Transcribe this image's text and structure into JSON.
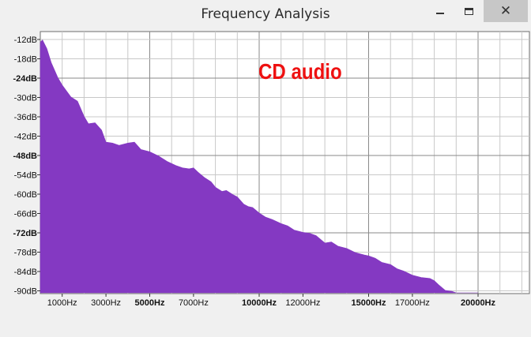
{
  "window": {
    "title": "Frequency Analysis",
    "close_glyph": "✕"
  },
  "chart_data": {
    "type": "area",
    "annotation": "CD audio",
    "series_color": "#8439c2",
    "yticks": [
      {
        "value": -12,
        "label": "-12dB",
        "bold": false
      },
      {
        "value": -18,
        "label": "-18dB",
        "bold": false
      },
      {
        "value": -24,
        "label": "-24dB",
        "bold": true
      },
      {
        "value": -30,
        "label": "-30dB",
        "bold": false
      },
      {
        "value": -36,
        "label": "-36dB",
        "bold": false
      },
      {
        "value": -42,
        "label": "-42dB",
        "bold": false
      },
      {
        "value": -48,
        "label": "-48dB",
        "bold": true
      },
      {
        "value": -54,
        "label": "-54dB",
        "bold": false
      },
      {
        "value": -60,
        "label": "-60dB",
        "bold": false
      },
      {
        "value": -66,
        "label": "-66dB",
        "bold": false
      },
      {
        "value": -72,
        "label": "-72dB",
        "bold": true
      },
      {
        "value": -78,
        "label": "-78dB",
        "bold": false
      },
      {
        "value": -84,
        "label": "-84dB",
        "bold": false
      },
      {
        "value": -90,
        "label": "-90dB",
        "bold": false
      }
    ],
    "xticks": [
      {
        "value": 1000,
        "label": "1000Hz",
        "bold": false
      },
      {
        "value": 3000,
        "label": "3000Hz",
        "bold": false
      },
      {
        "value": 5000,
        "label": "5000Hz",
        "bold": true
      },
      {
        "value": 7000,
        "label": "7000Hz",
        "bold": false
      },
      {
        "value": 10000,
        "label": "10000Hz",
        "bold": true
      },
      {
        "value": 12000,
        "label": "12000Hz",
        "bold": false
      },
      {
        "value": 15000,
        "label": "15000Hz",
        "bold": true
      },
      {
        "value": 17000,
        "label": "17000Hz",
        "bold": false
      },
      {
        "value": 20000,
        "label": "20000Hz",
        "bold": true
      }
    ],
    "xlim": [
      0,
      22050
    ],
    "ylim": [
      -92,
      -10
    ],
    "grid": true,
    "x": [
      0,
      100,
      300,
      500,
      800,
      1000,
      1400,
      1700,
      2000,
      2200,
      2500,
      2800,
      3000,
      3300,
      3600,
      4000,
      4300,
      4600,
      5000,
      5400,
      5800,
      6200,
      6500,
      6800,
      7000,
      7200,
      7500,
      7800,
      8000,
      8300,
      8500,
      8800,
      9000,
      9300,
      9500,
      9700,
      10000,
      10300,
      10600,
      11000,
      11300,
      11600,
      12000,
      12300,
      12600,
      13000,
      13300,
      13600,
      14000,
      14400,
      14800,
      15000,
      15300,
      15600,
      16000,
      16300,
      16600,
      17000,
      17400,
      17800,
      18000,
      18200,
      18500,
      18800,
      19000,
      19500,
      20000
    ],
    "y": [
      -13,
      -12,
      -15,
      -19,
      -24,
      -26,
      -30,
      -31,
      -36,
      -38,
      -38,
      -40,
      -44,
      -44,
      -45,
      -44,
      -44,
      -46,
      -47,
      -48,
      -50,
      -51,
      -52,
      -52,
      -52,
      -53,
      -55,
      -56,
      -58,
      -59,
      -59,
      -60,
      -61,
      -63,
      -64,
      -64,
      -66,
      -67,
      -68,
      -69,
      -70,
      -71,
      -72,
      -72,
      -73,
      -75,
      -75,
      -76,
      -77,
      -78,
      -79,
      -79,
      -80,
      -81,
      -82,
      -83,
      -84,
      -85,
      -86,
      -86,
      -87,
      -88,
      -90,
      -90,
      -91,
      -91.5,
      -92
    ]
  }
}
